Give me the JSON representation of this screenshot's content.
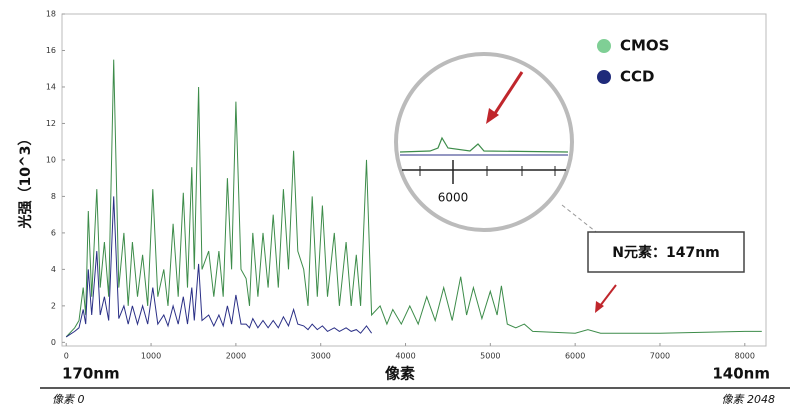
{
  "chart_data": {
    "type": "line",
    "x": [
      0,
      100,
      150,
      200,
      230,
      260,
      300,
      360,
      400,
      450,
      500,
      560,
      620,
      680,
      730,
      780,
      840,
      900,
      960,
      1020,
      1080,
      1150,
      1200,
      1260,
      1320,
      1380,
      1430,
      1480,
      1510,
      1560,
      1600,
      1680,
      1740,
      1800,
      1850,
      1900,
      1950,
      2000,
      2060,
      2120,
      2160,
      2200,
      2260,
      2320,
      2380,
      2440,
      2500,
      2560,
      2620,
      2680,
      2730,
      2800,
      2850,
      2900,
      2960,
      3020,
      3080,
      3160,
      3220,
      3300,
      3360,
      3420,
      3470,
      3540,
      3600,
      3700,
      3780,
      3850,
      3950,
      4050,
      4150,
      4250,
      4350,
      4450,
      4550,
      4650,
      4720,
      4800,
      4900,
      5000,
      5080,
      5130,
      5200,
      5300,
      5400,
      5500,
      6000,
      6150,
      6300,
      7000,
      8000,
      8200
    ],
    "series": [
      {
        "name": "CMOS",
        "color": "#3d8c4a",
        "legend_color": "#7fcf95",
        "values": [
          0.3,
          0.8,
          1.2,
          3.0,
          1.5,
          7.2,
          2.5,
          8.4,
          3,
          5.5,
          2.5,
          15.5,
          3,
          6,
          2,
          5.5,
          2.5,
          4.8,
          2,
          8.4,
          2.5,
          4,
          2,
          6.5,
          2.5,
          8.2,
          3,
          9.6,
          4,
          14,
          4,
          5,
          2.5,
          5,
          2.5,
          9,
          4,
          13.2,
          4,
          3.5,
          2,
          6,
          2.5,
          6,
          3,
          7,
          3,
          8.4,
          4,
          10.5,
          5,
          4,
          2,
          8,
          2.5,
          7.5,
          2.5,
          6,
          2,
          5.5,
          2,
          4.8,
          2,
          10,
          1.5,
          2,
          1,
          1.8,
          1,
          2,
          1,
          2.5,
          1.2,
          3,
          1.2,
          3.6,
          1.5,
          3,
          1.3,
          2.8,
          1.5,
          3.1,
          1,
          0.8,
          1.0,
          0.6,
          0.5,
          0.7,
          0.5,
          0.5,
          0.6,
          0.6
        ]
      },
      {
        "name": "CCD",
        "color": "#2a2f86",
        "legend_color": "#1f2a7a",
        "values": [
          0.3,
          0.6,
          0.8,
          1.8,
          1,
          4,
          1.5,
          5,
          1.5,
          2.5,
          1.2,
          8,
          1.3,
          2,
          1,
          2,
          1,
          2,
          1,
          3,
          1,
          1.5,
          0.9,
          2,
          1,
          2.5,
          1,
          3,
          1.2,
          4.3,
          1.2,
          1.5,
          0.9,
          1.5,
          0.9,
          2,
          1,
          2.6,
          1,
          1,
          0.8,
          1.3,
          0.8,
          1.2,
          0.8,
          1.2,
          0.8,
          1.4,
          0.9,
          1.8,
          1,
          0.9,
          0.7,
          1,
          0.7,
          0.9,
          0.6,
          0.8,
          0.6,
          0.8,
          0.6,
          0.7,
          0.5,
          0.9,
          0.5,
          null,
          null,
          null,
          null,
          null,
          null,
          null,
          null,
          null,
          null,
          null,
          null,
          null,
          null,
          null,
          null,
          null,
          null,
          null,
          null,
          null,
          null,
          null,
          null,
          null,
          null,
          null
        ]
      }
    ],
    "xlim": [
      -50,
      8250
    ],
    "ylim": [
      -0.2,
      18
    ],
    "xticks": [
      0,
      1000,
      2000,
      3000,
      4000,
      5000,
      6000,
      7000,
      8000
    ],
    "yticks": [
      0,
      2,
      4,
      6,
      8,
      10,
      12,
      14,
      16,
      18
    ],
    "x_label": "像素",
    "y_label": "光强（10^3）",
    "grid": false,
    "legend": "upper right",
    "annotations": {
      "left_wavelength": "170nm",
      "right_wavelength": "140nm",
      "left_pixel": "像素 0",
      "right_pixel": "像素 2048",
      "callout": "N元素：147nm",
      "inset_tick": "6000"
    }
  }
}
